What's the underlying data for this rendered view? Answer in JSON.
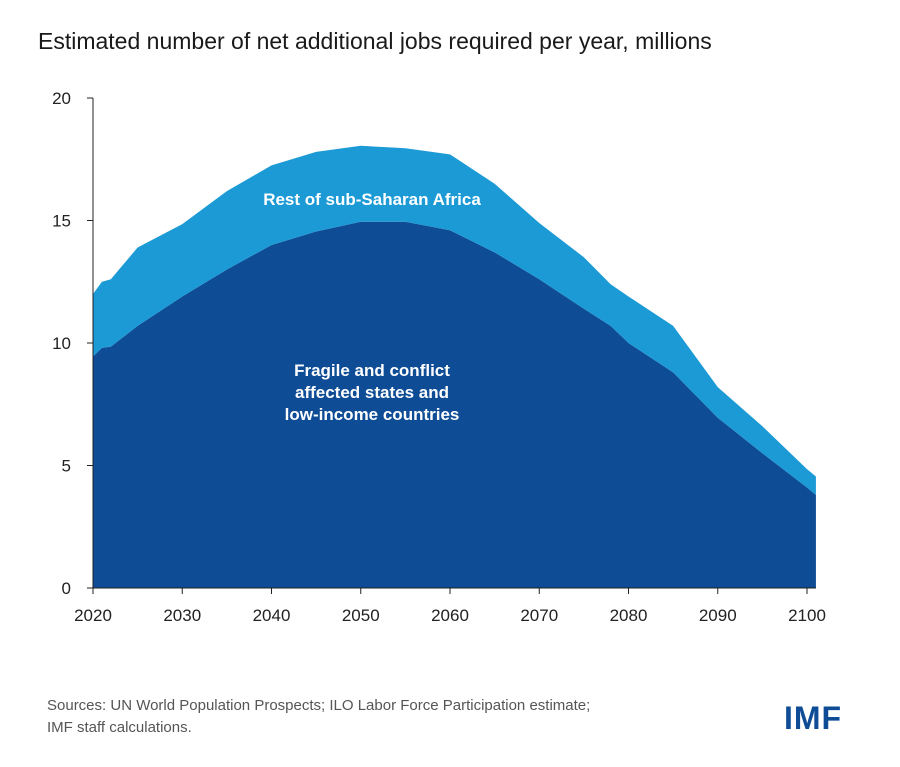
{
  "chart_data": {
    "type": "area",
    "stacked": true,
    "title": "Estimated number of net additional jobs required per year, millions",
    "xlabel": "",
    "ylabel": "",
    "xlim": [
      2020,
      2101
    ],
    "ylim": [
      0,
      20
    ],
    "x_ticks": [
      2020,
      2030,
      2040,
      2050,
      2060,
      2070,
      2080,
      2090,
      2100
    ],
    "y_ticks": [
      0,
      5,
      10,
      15,
      20
    ],
    "grid": false,
    "x": [
      2020,
      2021,
      2022,
      2025,
      2030,
      2035,
      2040,
      2045,
      2050,
      2055,
      2060,
      2065,
      2070,
      2075,
      2078,
      2080,
      2085,
      2090,
      2095,
      2100,
      2101
    ],
    "series": [
      {
        "name": "Fragile and conflict affected states and low-income countries",
        "color": "#0e4c96",
        "label_lines": [
          "Fragile and conflict",
          "affected states and",
          "low-income countries"
        ],
        "values": [
          9.45,
          9.8,
          9.85,
          10.7,
          11.9,
          13.0,
          14.0,
          14.55,
          14.95,
          14.95,
          14.6,
          13.7,
          12.6,
          11.4,
          10.7,
          10.0,
          8.8,
          6.95,
          5.5,
          4.1,
          3.8
        ]
      },
      {
        "name": "Rest of sub-Saharan Africa",
        "color": "#1b9ad6",
        "label_lines": [
          "Rest of sub-Saharan Africa"
        ],
        "values": [
          2.55,
          2.7,
          2.75,
          3.2,
          2.95,
          3.2,
          3.25,
          3.25,
          3.1,
          3.0,
          3.1,
          2.8,
          2.3,
          2.1,
          1.7,
          1.9,
          1.9,
          1.25,
          1.1,
          0.75,
          0.75
        ]
      }
    ]
  },
  "footer": {
    "sources_line1": "Sources: UN World Population Prospects; ILO Labor Force Participation estimate;",
    "sources_line2": "IMF staff calculations.",
    "logo": "IMF"
  }
}
